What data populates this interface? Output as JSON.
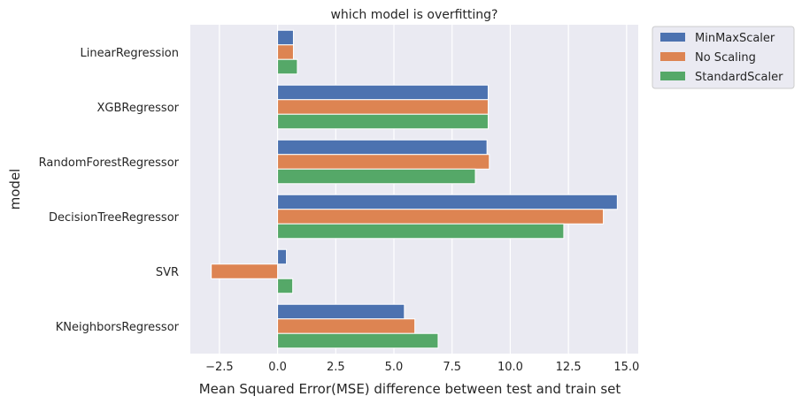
{
  "chart_data": {
    "type": "bar",
    "orientation": "horizontal",
    "title": "which model is overfitting?",
    "xlabel": "Mean Squared Error(MSE) difference between test and train set",
    "ylabel": "model",
    "xlim": [
      -3.75,
      15.5
    ],
    "xticks": [
      -2.5,
      0.0,
      2.5,
      5.0,
      7.5,
      10.0,
      12.5,
      15.0
    ],
    "xtick_labels": [
      "−2.5",
      "0.0",
      "2.5",
      "5.0",
      "7.5",
      "10.0",
      "12.5",
      "15.0"
    ],
    "grid": true,
    "legend_position": "outside-top-right",
    "categories": [
      "LinearRegression",
      "XGBRegressor",
      "RandomForestRegressor",
      "DecisionTreeRegressor",
      "SVR",
      "KNeighborsRegressor"
    ],
    "series": [
      {
        "name": "MinMaxScaler",
        "color": "#4c72b0",
        "values": [
          0.68,
          9.05,
          9.0,
          14.6,
          0.38,
          5.45
        ]
      },
      {
        "name": "No Scaling",
        "color": "#dd8452",
        "values": [
          0.68,
          9.05,
          9.1,
          14.0,
          -2.85,
          5.9
        ]
      },
      {
        "name": "StandardScaler",
        "color": "#55a868",
        "values": [
          0.85,
          9.05,
          8.5,
          12.3,
          0.65,
          6.9
        ]
      }
    ]
  }
}
